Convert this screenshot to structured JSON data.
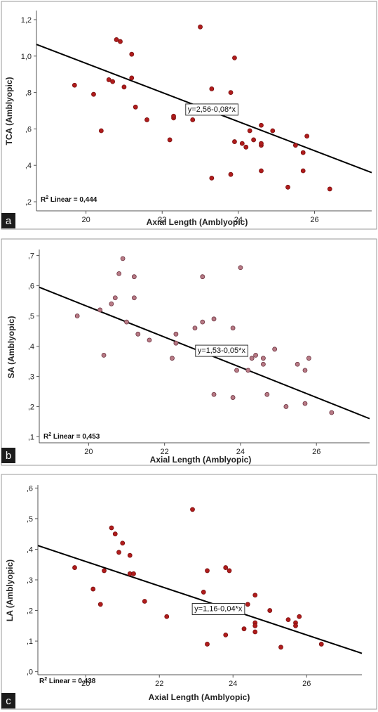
{
  "chart_data": [
    {
      "type": "scatter",
      "panel_letter": "a",
      "xlabel": "Axial Length (Amblyopic)",
      "ylabel": "TCA (Amblyopic)",
      "xlim": [
        18.7,
        27.5
      ],
      "ylim": [
        0.15,
        1.25
      ],
      "xticks": [
        20,
        22,
        24,
        26
      ],
      "xtick_labels": [
        "20",
        "22",
        "24",
        "26"
      ],
      "yticks": [
        0.2,
        0.4,
        0.6,
        0.8,
        1.0,
        1.2
      ],
      "ytick_labels": [
        ",2",
        ",4",
        ",6",
        ",8",
        "1,0",
        "1,2"
      ],
      "fit_line": {
        "intercept": 2.56,
        "slope": -0.08
      },
      "equation": "y=2,56-0,08*x",
      "equation_pos": [
        23.3,
        0.71
      ],
      "r2_label": "Linear = 0,444",
      "marker_color": "#b01c1c",
      "marker_stroke": "#7a1010",
      "points": {
        "x": [
          19.7,
          20.2,
          20.4,
          20.6,
          20.7,
          20.8,
          20.9,
          21.0,
          21.2,
          21.2,
          21.3,
          21.6,
          22.2,
          22.3,
          22.3,
          22.8,
          23.0,
          23.3,
          23.3,
          23.8,
          23.8,
          23.9,
          23.9,
          24.1,
          24.2,
          24.3,
          24.4,
          24.6,
          24.6,
          24.6,
          24.6,
          24.9,
          25.3,
          25.5,
          25.7,
          25.7,
          25.8,
          26.4
        ],
        "y": [
          0.84,
          0.79,
          0.59,
          0.87,
          0.86,
          1.09,
          1.08,
          0.83,
          0.88,
          1.01,
          0.72,
          0.65,
          0.54,
          0.66,
          0.67,
          0.65,
          1.16,
          0.82,
          0.33,
          0.35,
          0.8,
          0.53,
          0.99,
          0.52,
          0.5,
          0.59,
          0.54,
          0.51,
          0.52,
          0.62,
          0.37,
          0.59,
          0.28,
          0.51,
          0.47,
          0.37,
          0.56,
          0.27
        ]
      }
    },
    {
      "type": "scatter",
      "panel_letter": "b",
      "xlabel": "Axial Length (Amblyopic)",
      "ylabel": "SA (Amblyopic)",
      "xlim": [
        18.7,
        27.4
      ],
      "ylim": [
        0.08,
        0.72
      ],
      "xticks": [
        20,
        22,
        24,
        26
      ],
      "xtick_labels": [
        "20",
        "22",
        "24",
        "26"
      ],
      "yticks": [
        0.1,
        0.2,
        0.3,
        0.4,
        0.5,
        0.6,
        0.7
      ],
      "ytick_labels": [
        ",1",
        ",2",
        ",3",
        ",4",
        ",5",
        ",6",
        ",7"
      ],
      "fit_line": {
        "intercept": 1.53,
        "slope": -0.05
      },
      "equation": "y=1,53-0,05*x",
      "equation_pos": [
        23.5,
        0.387
      ],
      "r2_label": "Linear = 0,453",
      "marker_color": "#b77a85",
      "marker_stroke": "#6d3340",
      "points": {
        "x": [
          19.7,
          20.3,
          20.4,
          20.6,
          20.7,
          20.8,
          20.9,
          21.0,
          21.2,
          21.2,
          21.3,
          21.6,
          22.2,
          22.3,
          22.3,
          22.8,
          23.0,
          23.0,
          23.3,
          23.3,
          23.8,
          23.8,
          23.9,
          24.0,
          24.2,
          24.3,
          24.4,
          24.6,
          24.6,
          24.7,
          24.9,
          25.2,
          25.5,
          25.7,
          25.7,
          25.8,
          26.4
        ],
        "y": [
          0.5,
          0.52,
          0.37,
          0.54,
          0.56,
          0.64,
          0.69,
          0.48,
          0.56,
          0.63,
          0.44,
          0.42,
          0.36,
          0.44,
          0.41,
          0.46,
          0.48,
          0.63,
          0.24,
          0.49,
          0.23,
          0.46,
          0.32,
          0.66,
          0.32,
          0.36,
          0.37,
          0.34,
          0.36,
          0.24,
          0.39,
          0.2,
          0.34,
          0.21,
          0.32,
          0.36,
          0.18
        ]
      }
    },
    {
      "type": "scatter",
      "panel_letter": "c",
      "xlabel": "Axial Length (Amblyopic)",
      "ylabel": "LA (Amblyopic)",
      "xlim": [
        18.7,
        27.5
      ],
      "ylim": [
        -0.01,
        0.61
      ],
      "xticks": [
        20,
        22,
        24,
        26
      ],
      "xtick_labels": [
        "20",
        "22",
        "24",
        "26"
      ],
      "yticks": [
        0.0,
        0.1,
        0.2,
        0.3,
        0.4,
        0.5,
        0.6
      ],
      "ytick_labels": [
        ",0",
        ",1",
        ",2",
        ",3",
        ",4",
        ",5",
        ",6"
      ],
      "fit_line": {
        "intercept": 1.16,
        "slope": -0.04
      },
      "equation": "y=1,16-0,04*x",
      "equation_pos": [
        23.6,
        0.207
      ],
      "r2_label": "Linear = 0,438",
      "marker_color": "#b01c1c",
      "marker_stroke": "#7a1010",
      "points": {
        "x": [
          19.7,
          20.2,
          20.4,
          20.5,
          20.7,
          20.8,
          20.9,
          21.0,
          21.2,
          21.2,
          21.3,
          21.6,
          22.2,
          22.9,
          23.2,
          23.3,
          23.3,
          23.8,
          23.8,
          23.9,
          24.0,
          24.2,
          24.3,
          24.4,
          24.6,
          24.6,
          24.6,
          24.6,
          25.0,
          25.3,
          25.5,
          25.7,
          25.7,
          25.8,
          26.4
        ],
        "y": [
          0.34,
          0.27,
          0.22,
          0.33,
          0.47,
          0.45,
          0.39,
          0.42,
          0.32,
          0.38,
          0.32,
          0.23,
          0.18,
          0.53,
          0.26,
          0.09,
          0.33,
          0.34,
          0.12,
          0.33,
          0.21,
          0.2,
          0.14,
          0.22,
          0.25,
          0.16,
          0.15,
          0.13,
          0.2,
          0.08,
          0.17,
          0.16,
          0.15,
          0.18,
          0.09
        ]
      }
    }
  ]
}
